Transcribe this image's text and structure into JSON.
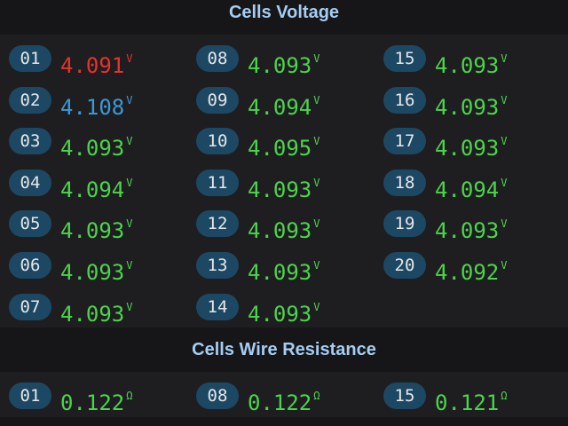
{
  "sections": [
    {
      "title": "Cells Voltage",
      "unit": "V",
      "cells": [
        {
          "id": "01",
          "value": "4.091",
          "color": "#e8312e"
        },
        {
          "id": "02",
          "value": "4.108",
          "color": "#3a9ad9"
        },
        {
          "id": "03",
          "value": "4.093",
          "color": "#4cd44c"
        },
        {
          "id": "04",
          "value": "4.094",
          "color": "#4cd44c"
        },
        {
          "id": "05",
          "value": "4.093",
          "color": "#4cd44c"
        },
        {
          "id": "06",
          "value": "4.093",
          "color": "#4cd44c"
        },
        {
          "id": "07",
          "value": "4.093",
          "color": "#4cd44c"
        },
        {
          "id": "08",
          "value": "4.093",
          "color": "#4cd44c"
        },
        {
          "id": "09",
          "value": "4.094",
          "color": "#4cd44c"
        },
        {
          "id": "10",
          "value": "4.095",
          "color": "#4cd44c"
        },
        {
          "id": "11",
          "value": "4.093",
          "color": "#4cd44c"
        },
        {
          "id": "12",
          "value": "4.093",
          "color": "#4cd44c"
        },
        {
          "id": "13",
          "value": "4.093",
          "color": "#4cd44c"
        },
        {
          "id": "14",
          "value": "4.093",
          "color": "#4cd44c"
        },
        {
          "id": "15",
          "value": "4.093",
          "color": "#4cd44c"
        },
        {
          "id": "16",
          "value": "4.093",
          "color": "#4cd44c"
        },
        {
          "id": "17",
          "value": "4.093",
          "color": "#4cd44c"
        },
        {
          "id": "18",
          "value": "4.094",
          "color": "#4cd44c"
        },
        {
          "id": "19",
          "value": "4.093",
          "color": "#4cd44c"
        },
        {
          "id": "20",
          "value": "4.092",
          "color": "#4cd44c"
        }
      ]
    },
    {
      "title": "Cells Wire Resistance",
      "unit": "Ω",
      "cells": [
        {
          "id": "01",
          "value": "0.122",
          "color": "#4cd44c"
        },
        {
          "id": "08",
          "value": "0.122",
          "color": "#4cd44c"
        },
        {
          "id": "15",
          "value": "0.121",
          "color": "#4cd44c"
        }
      ]
    }
  ]
}
